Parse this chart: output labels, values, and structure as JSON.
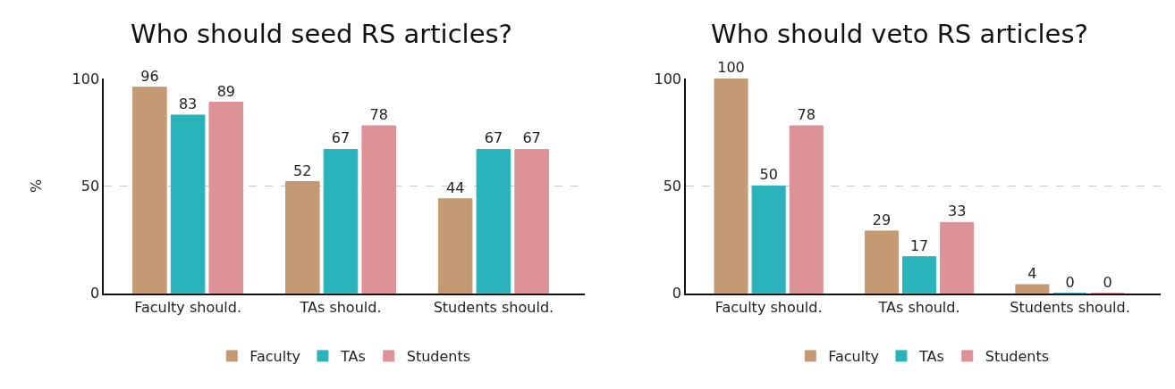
{
  "chart_data": [
    {
      "type": "bar",
      "title": "Who should seed RS articles?",
      "ylabel": "%",
      "categories": [
        "Faculty should.",
        "TAs should.",
        "Students should."
      ],
      "series": [
        {
          "name": "Faculty",
          "color": "#c49a74",
          "values": [
            96,
            52,
            44
          ]
        },
        {
          "name": "TAs",
          "color": "#2ab3ba",
          "values": [
            83,
            67,
            67
          ]
        },
        {
          "name": "Students",
          "color": "#dd9298",
          "values": [
            89,
            78,
            67
          ]
        }
      ],
      "ylim": [
        0,
        100
      ],
      "yticks": [
        0,
        50,
        100
      ],
      "grid": "y",
      "legend": "bottom",
      "data_labels": true
    },
    {
      "type": "bar",
      "title": "Who should veto RS articles?",
      "categories": [
        "Faculty should.",
        "TAs should.",
        "Students should."
      ],
      "series": [
        {
          "name": "Faculty",
          "color": "#c49a74",
          "values": [
            100,
            29,
            4
          ]
        },
        {
          "name": "TAs",
          "color": "#2ab3ba",
          "values": [
            50,
            17,
            0
          ]
        },
        {
          "name": "Students",
          "color": "#dd9298",
          "values": [
            78,
            33,
            0
          ]
        }
      ],
      "ylim": [
        0,
        100
      ],
      "yticks": [
        0,
        50,
        100
      ],
      "grid": "y",
      "legend": "bottom",
      "data_labels": true
    }
  ]
}
